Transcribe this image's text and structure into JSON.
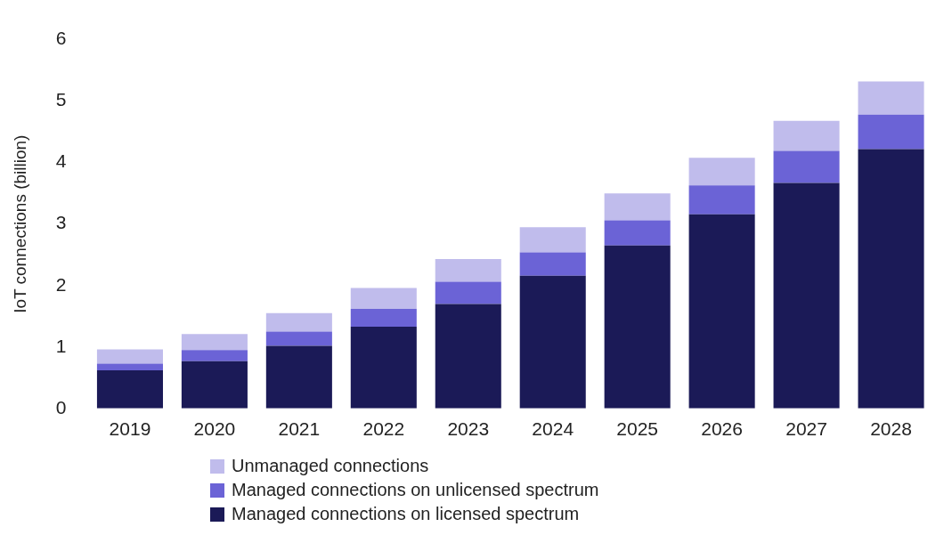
{
  "chart_data": {
    "type": "bar",
    "stacked": true,
    "ylabel": "IoT connections (billion)",
    "categories": [
      "2019",
      "2020",
      "2021",
      "2022",
      "2023",
      "2024",
      "2025",
      "2026",
      "2027",
      "2028"
    ],
    "series": [
      {
        "name": "Managed connections on licensed spectrum",
        "color": "#1b1a57",
        "values": [
          0.62,
          0.77,
          1.02,
          1.33,
          1.7,
          2.16,
          2.65,
          3.16,
          3.67,
          4.22
        ]
      },
      {
        "name": "Managed connections on unlicensed spectrum",
        "color": "#6b63d6",
        "values": [
          0.11,
          0.18,
          0.23,
          0.29,
          0.36,
          0.38,
          0.41,
          0.47,
          0.52,
          0.56
        ]
      },
      {
        "name": "Unmanaged connections",
        "color": "#c0bcec",
        "values": [
          0.23,
          0.26,
          0.3,
          0.34,
          0.37,
          0.41,
          0.44,
          0.45,
          0.49,
          0.54
        ]
      }
    ],
    "ylim": [
      0,
      6
    ],
    "yticks": [
      0,
      1,
      2,
      3,
      4,
      5,
      6
    ],
    "grid": false,
    "legend": "bottom"
  }
}
